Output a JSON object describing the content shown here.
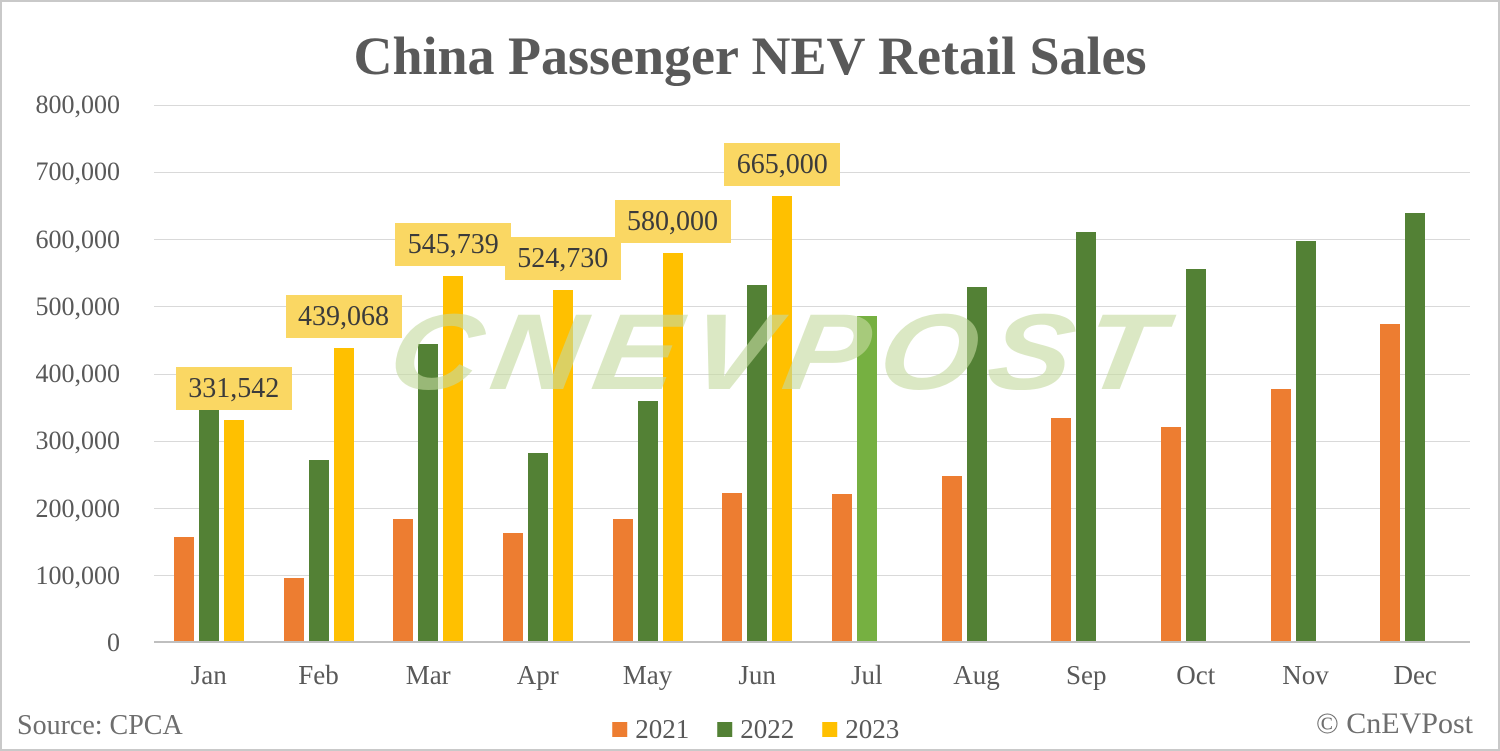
{
  "title": "China Passenger NEV Retail Sales",
  "source": "Source: CPCA",
  "copyright": "© CnEVPost",
  "watermark": "CNEVPOST",
  "colors": {
    "series_2021": "#ED7D31",
    "series_2022": "#538135",
    "series_2022_jul_highlight": "#76B041",
    "series_2023": "#FFC000",
    "data_label_box": "#FAD763",
    "data_label_text": "#3b3b3b",
    "axis_text": "#595959",
    "gridline": "#d9d9d9",
    "axis_line": "#bfbfbf",
    "watermark_green": "rgba(197,218,160,0.62)"
  },
  "chart_data": {
    "type": "bar",
    "title": "China Passenger NEV Retail Sales",
    "categories": [
      "Jan",
      "Feb",
      "Mar",
      "Apr",
      "May",
      "Jun",
      "Jul",
      "Aug",
      "Sep",
      "Oct",
      "Nov",
      "Dec"
    ],
    "series": [
      {
        "name": "2021",
        "color": "#ED7D31",
        "values": [
          158000,
          97000,
          185000,
          163000,
          185000,
          223000,
          222000,
          249000,
          334000,
          321000,
          378000,
          475000
        ]
      },
      {
        "name": "2022",
        "color": "#538135",
        "color_overrides": {
          "6": "#76B041"
        },
        "values": [
          347000,
          272000,
          445000,
          282000,
          360000,
          532000,
          486000,
          529000,
          611000,
          556000,
          598000,
          640000
        ]
      },
      {
        "name": "2023",
        "color": "#FFC000",
        "values": [
          331542,
          439068,
          545739,
          524730,
          580000,
          665000,
          null,
          null,
          null,
          null,
          null,
          null
        ],
        "data_labels": [
          "331,542",
          "439,068",
          "545,739",
          "524,730",
          "580,000",
          "665,000",
          null,
          null,
          null,
          null,
          null,
          null
        ]
      }
    ],
    "xlabel": "",
    "ylabel": "",
    "ylim": [
      0,
      800000
    ],
    "ytick_step": 100000,
    "y_ticks": [
      "0",
      "100,000",
      "200,000",
      "300,000",
      "400,000",
      "500,000",
      "600,000",
      "700,000",
      "800,000"
    ],
    "grid": true,
    "legend_position": "bottom"
  }
}
